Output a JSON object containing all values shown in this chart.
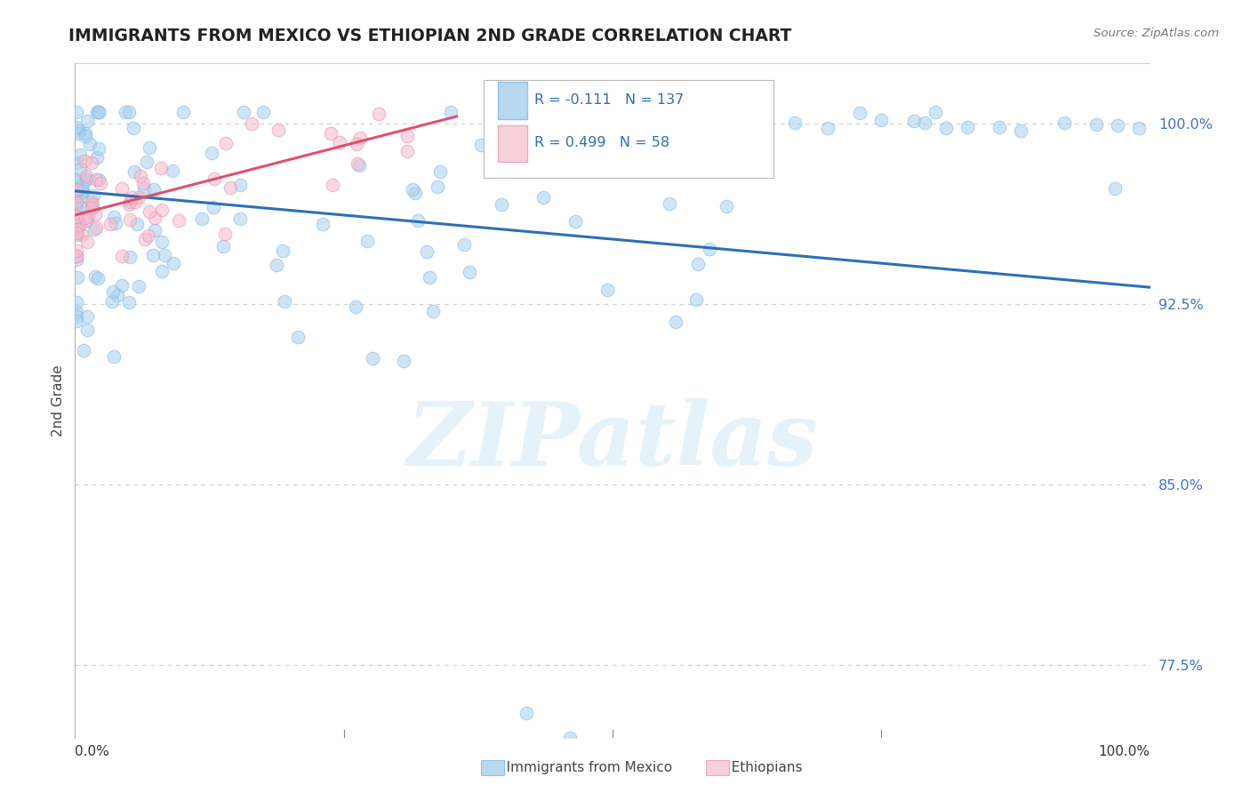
{
  "title": "IMMIGRANTS FROM MEXICO VS ETHIOPIAN 2ND GRADE CORRELATION CHART",
  "source": "Source: ZipAtlas.com",
  "ylabel": "2nd Grade",
  "legend_r_mexico": "-0.111",
  "legend_n_mexico": "137",
  "legend_r_ethiopian": "0.499",
  "legend_n_ethiopian": "58",
  "mexico_color": "#a8d0f0",
  "mexico_edge_color": "#7eb8e8",
  "ethiopian_color": "#f5b8cc",
  "ethiopian_edge_color": "#e890aa",
  "mexico_line_color": "#2d6fb5",
  "ethiopian_line_color": "#e05070",
  "watermark": "ZIPatlas",
  "background_color": "#ffffff",
  "dot_size": 110,
  "dot_alpha": 0.55,
  "xlim": [
    0.0,
    1.0
  ],
  "ylim": [
    0.745,
    1.025
  ],
  "ytick_vals": [
    0.775,
    0.85,
    0.925,
    1.0
  ],
  "ytick_labels": [
    "77.5%",
    "85.0%",
    "92.5%",
    "100.0%"
  ],
  "grid_color": "#d0d0d0",
  "top_grid_color": "#c0c0c0",
  "mexico_line_x0": 0.0,
  "mexico_line_x1": 1.0,
  "mexico_line_y0": 0.972,
  "mexico_line_y1": 0.932,
  "ethiopian_line_x0": 0.0,
  "ethiopian_line_x1": 0.355,
  "ethiopian_line_y0": 0.962,
  "ethiopian_line_y1": 1.003
}
